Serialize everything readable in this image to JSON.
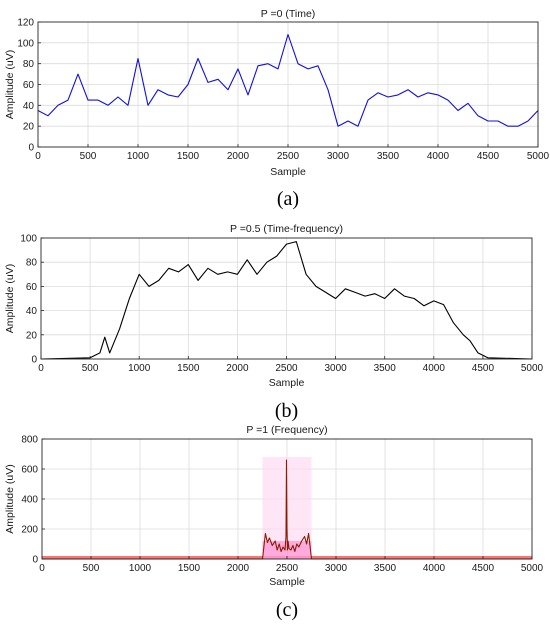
{
  "chart_data": [
    {
      "type": "line",
      "panel_label": "(a)",
      "title": "P =0 (Time)",
      "xlabel": "Sample",
      "ylabel": "Amplitude (uV)",
      "xlim": [
        0,
        5000
      ],
      "ylim": [
        0,
        120
      ],
      "xticks": [
        0,
        500,
        1000,
        1500,
        2000,
        2500,
        3000,
        3500,
        4000,
        4500,
        5000
      ],
      "yticks": [
        0,
        20,
        40,
        60,
        80,
        100,
        120
      ],
      "grid": true,
      "series": [
        {
          "color": "#1010e0",
          "x": [
            0,
            100,
            200,
            300,
            400,
            500,
            600,
            700,
            800,
            900,
            1000,
            1100,
            1200,
            1300,
            1400,
            1500,
            1600,
            1700,
            1800,
            1900,
            2000,
            2100,
            2200,
            2300,
            2400,
            2500,
            2600,
            2700,
            2800,
            2900,
            3000,
            3100,
            3200,
            3300,
            3400,
            3500,
            3600,
            3700,
            3800,
            3900,
            4000,
            4100,
            4200,
            4300,
            4400,
            4500,
            4600,
            4700,
            4800,
            4900,
            5000
          ],
          "y": [
            35,
            30,
            40,
            45,
            70,
            45,
            45,
            40,
            48,
            40,
            85,
            40,
            55,
            50,
            48,
            60,
            85,
            62,
            65,
            55,
            75,
            50,
            78,
            80,
            75,
            108,
            80,
            75,
            78,
            55,
            20,
            25,
            20,
            45,
            52,
            48,
            50,
            55,
            48,
            52,
            50,
            45,
            35,
            42,
            30,
            25,
            25,
            20,
            20,
            25,
            35
          ]
        }
      ]
    },
    {
      "type": "line",
      "panel_label": "(b)",
      "title": "P =0.5 (Time-frequency)",
      "xlabel": "Sample",
      "ylabel": "Amplitude (uV)",
      "xlim": [
        0,
        5000
      ],
      "ylim": [
        0,
        100
      ],
      "xticks": [
        0,
        500,
        1000,
        1500,
        2000,
        2500,
        3000,
        3500,
        4000,
        4500,
        5000
      ],
      "yticks": [
        0,
        20,
        40,
        60,
        80,
        100
      ],
      "grid": true,
      "series": [
        {
          "color": "#000000",
          "x": [
            0,
            500,
            600,
            650,
            700,
            800,
            900,
            1000,
            1100,
            1200,
            1300,
            1400,
            1500,
            1600,
            1700,
            1800,
            1900,
            2000,
            2100,
            2200,
            2300,
            2400,
            2500,
            2600,
            2700,
            2800,
            2900,
            3000,
            3100,
            3200,
            3300,
            3400,
            3500,
            3600,
            3700,
            3800,
            3900,
            4000,
            4100,
            4200,
            4300,
            4370,
            4450,
            4550,
            5000
          ],
          "y": [
            0,
            1,
            5,
            18,
            5,
            25,
            50,
            70,
            60,
            65,
            75,
            72,
            78,
            65,
            75,
            70,
            72,
            70,
            82,
            70,
            80,
            85,
            95,
            97,
            70,
            60,
            55,
            50,
            58,
            55,
            52,
            54,
            50,
            58,
            52,
            50,
            44,
            48,
            45,
            30,
            20,
            15,
            5,
            1,
            0
          ]
        }
      ]
    },
    {
      "type": "line",
      "panel_label": "(c)",
      "title": "P =1 (Frequency)",
      "xlabel": "Sample",
      "ylabel": "Amplitude (uV)",
      "xlim": [
        0,
        5000
      ],
      "ylim": [
        0,
        800
      ],
      "xticks": [
        0,
        500,
        1000,
        1500,
        2000,
        2500,
        3000,
        3500,
        4000,
        4500,
        5000
      ],
      "yticks": [
        0,
        200,
        400,
        600,
        800
      ],
      "grid": true,
      "series": [
        {
          "color": "#8b1a00",
          "x": [
            0,
            2250,
            2280,
            2300,
            2320,
            2350,
            2380,
            2400,
            2420,
            2440,
            2460,
            2480,
            2490,
            2495,
            2500,
            2505,
            2510,
            2520,
            2540,
            2560,
            2580,
            2600,
            2620,
            2650,
            2680,
            2700,
            2720,
            2750,
            5000
          ],
          "y": [
            0,
            0,
            170,
            110,
            140,
            90,
            120,
            60,
            100,
            50,
            80,
            60,
            150,
            660,
            200,
            60,
            120,
            70,
            60,
            90,
            50,
            100,
            80,
            120,
            150,
            100,
            170,
            0,
            0
          ]
        }
      ]
    }
  ]
}
